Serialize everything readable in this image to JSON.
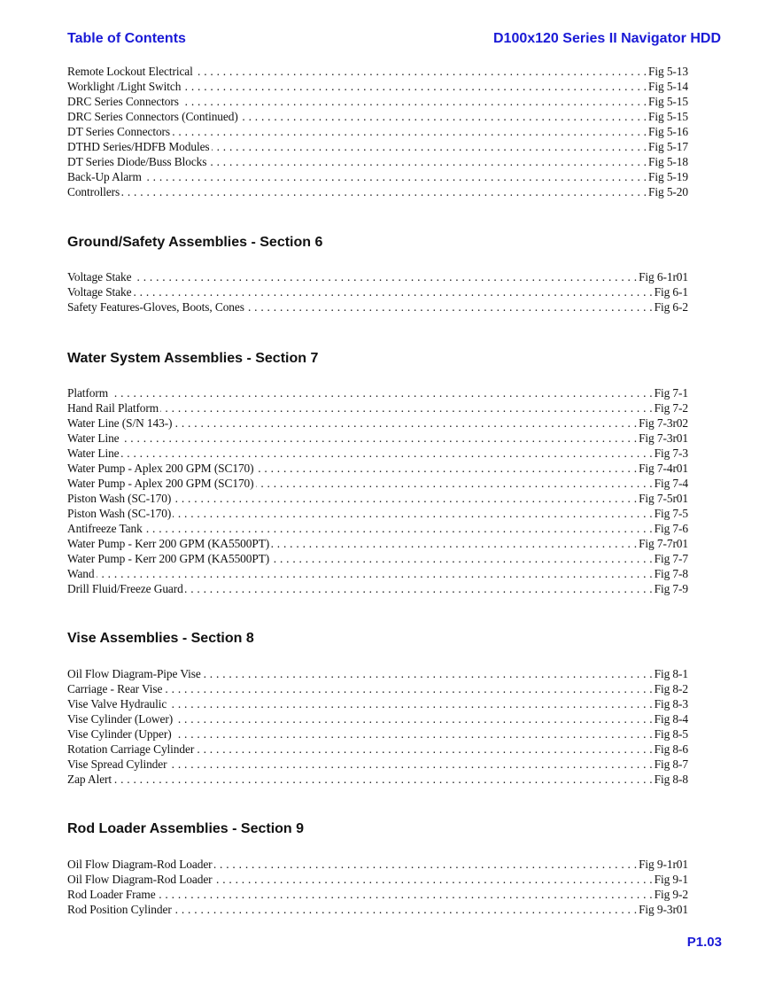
{
  "header": {
    "left": "Table of Contents",
    "right": "D100x120 Series II Navigator HDD"
  },
  "sections": [
    {
      "title": "",
      "items": [
        {
          "label": "Remote Lockout Electrical",
          "fig": "Fig 5-13"
        },
        {
          "label": "Worklight /Light Switch",
          "fig": "Fig 5-14"
        },
        {
          "label": "DRC Series Connectors",
          "fig": "Fig 5-15"
        },
        {
          "label": "DRC Series Connectors (Continued)",
          "fig": "Fig 5-15"
        },
        {
          "label": "DT Series Connectors",
          "fig": "Fig 5-16"
        },
        {
          "label": "DTHD Series/HDFB Modules",
          "fig": "Fig 5-17"
        },
        {
          "label": "DT Series Diode/Buss Blocks",
          "fig": "Fig 5-18"
        },
        {
          "label": "Back-Up Alarm",
          "fig": "Fig 5-19"
        },
        {
          "label": "Controllers",
          "fig": "Fig 5-20"
        }
      ]
    },
    {
      "title": "Ground/Safety Assemblies - Section 6",
      "items": [
        {
          "label": "Voltage Stake",
          "fig": "Fig 6-1r01"
        },
        {
          "label": "Voltage Stake",
          "fig": "Fig 6-1"
        },
        {
          "label": "Safety Features-Gloves, Boots, Cones",
          "fig": "Fig 6-2"
        }
      ]
    },
    {
      "title": "Water System Assemblies - Section 7",
      "items": [
        {
          "label": "Platform",
          "fig": "Fig 7-1"
        },
        {
          "label": "Hand Rail Platform",
          "fig": "Fig 7-2"
        },
        {
          "label": "Water Line (S/N 143-)",
          "fig": "Fig 7-3r02"
        },
        {
          "label": "Water Line",
          "fig": "Fig 7-3r01"
        },
        {
          "label": "Water Line",
          "fig": "Fig 7-3"
        },
        {
          "label": "Water Pump - Aplex 200 GPM (SC170)",
          "fig": "Fig 7-4r01"
        },
        {
          "label": "Water Pump - Aplex 200 GPM (SC170)",
          "fig": "Fig 7-4"
        },
        {
          "label": "Piston Wash (SC-170)",
          "fig": "Fig 7-5r01"
        },
        {
          "label": "Piston Wash (SC-170)",
          "fig": "Fig 7-5"
        },
        {
          "label": "Antifreeze Tank",
          "fig": "Fig 7-6"
        },
        {
          "label": "Water Pump - Kerr 200 GPM (KA5500PT)",
          "fig": "Fig 7-7r01"
        },
        {
          "label": "Water Pump - Kerr 200 GPM (KA5500PT)",
          "fig": "Fig 7-7"
        },
        {
          "label": "Wand",
          "fig": "Fig 7-8"
        },
        {
          "label": "Drill Fluid/Freeze Guard",
          "fig": "Fig 7-9"
        }
      ]
    },
    {
      "title": "Vise Assemblies - Section 8",
      "items": [
        {
          "label": "Oil Flow Diagram-Pipe Vise",
          "fig": "Fig 8-1"
        },
        {
          "label": "Carriage - Rear Vise",
          "fig": "Fig 8-2"
        },
        {
          "label": "Vise Valve Hydraulic",
          "fig": "Fig 8-3"
        },
        {
          "label": "Vise Cylinder (Lower)",
          "fig": "Fig 8-4"
        },
        {
          "label": "Vise Cylinder (Upper)",
          "fig": "Fig 8-5"
        },
        {
          "label": "Rotation Carriage Cylinder",
          "fig": "Fig 8-6"
        },
        {
          "label": "Vise Spread Cylinder",
          "fig": "Fig 8-7"
        },
        {
          "label": "Zap Alert",
          "fig": "Fig 8-8"
        }
      ]
    },
    {
      "title": "Rod Loader Assemblies - Section 9",
      "items": [
        {
          "label": "Oil Flow Diagram-Rod Loader",
          "fig": "Fig 9-1r01"
        },
        {
          "label": "Oil Flow Diagram-Rod Loader",
          "fig": "Fig 9-1"
        },
        {
          "label": "Rod Loader Frame",
          "fig": "Fig 9-2"
        },
        {
          "label": "Rod Position Cylinder",
          "fig": "Fig 9-3r01"
        }
      ]
    }
  ],
  "page_number": "P1.03",
  "colors": {
    "header": "#1a1ad6",
    "text": "#111111"
  }
}
